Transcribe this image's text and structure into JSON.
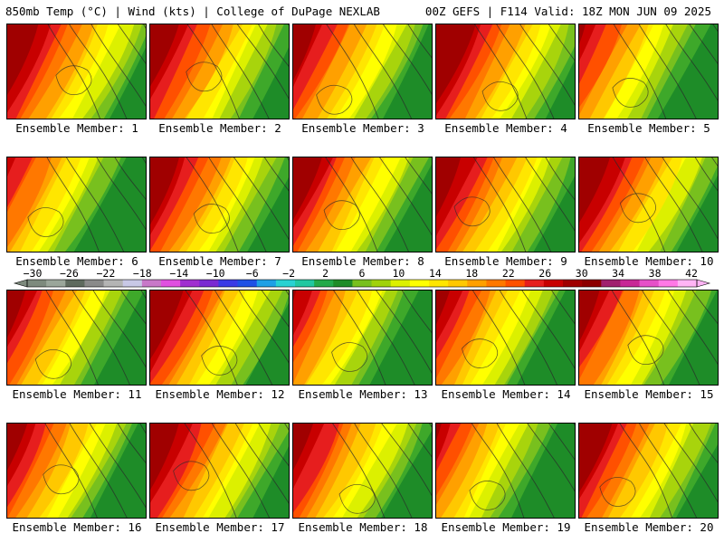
{
  "header": {
    "title": "850mb Temp (°C) | Wind (kts) | College of DuPage NEXLAB",
    "run_info": "00Z GEFS | F114 Valid: 18Z MON JUN 09 2025"
  },
  "colorbar": {
    "labels": [
      "-30",
      "-26",
      "-22",
      "-18",
      "-14",
      "-10",
      "-6",
      "-2",
      "2",
      "6",
      "10",
      "14",
      "18",
      "22",
      "26",
      "30",
      "34",
      "38",
      "42"
    ],
    "colors": [
      "#7d8a7d",
      "#9aa69a",
      "#5e6a5e",
      "#8a8a8a",
      "#b4b4b4",
      "#c8c8e6",
      "#c878c8",
      "#e050e0",
      "#a030d0",
      "#7a2ad2",
      "#3a3ae6",
      "#1e50e6",
      "#1ea0e6",
      "#28d2d2",
      "#20c8a0",
      "#22aa4a",
      "#1e8c28",
      "#78c01e",
      "#a0d20a",
      "#dcf000",
      "#ffff00",
      "#ffe600",
      "#ffc800",
      "#ffa000",
      "#ff7800",
      "#ff5000",
      "#e61e1e",
      "#c80000",
      "#a00000",
      "#8c0000",
      "#a0206e",
      "#c82896",
      "#e650c8",
      "#ff78e6",
      "#ffb4f5"
    ]
  },
  "members": [
    {
      "label": "Ensemble Member: 1",
      "warmth": 0.78
    },
    {
      "label": "Ensemble Member: 2",
      "warmth": 0.74
    },
    {
      "label": "Ensemble Member: 3",
      "warmth": 0.66
    },
    {
      "label": "Ensemble Member: 4",
      "warmth": 0.8
    },
    {
      "label": "Ensemble Member: 5",
      "warmth": 0.55
    },
    {
      "label": "Ensemble Member: 6",
      "warmth": 0.48
    },
    {
      "label": "Ensemble Member: 7",
      "warmth": 0.72
    },
    {
      "label": "Ensemble Member: 8",
      "warmth": 0.7
    },
    {
      "label": "Ensemble Member: 9",
      "warmth": 0.72
    },
    {
      "label": "Ensemble Member: 10",
      "warmth": 0.76
    },
    {
      "label": "Ensemble Member: 11",
      "warmth": 0.62
    },
    {
      "label": "Ensemble Member: 12",
      "warmth": 0.74
    },
    {
      "label": "Ensemble Member: 13",
      "warmth": 0.52
    },
    {
      "label": "Ensemble Member: 14",
      "warmth": 0.6
    },
    {
      "label": "Ensemble Member: 15",
      "warmth": 0.64
    },
    {
      "label": "Ensemble Member: 16",
      "warmth": 0.62
    },
    {
      "label": "Ensemble Member: 17",
      "warmth": 0.76
    },
    {
      "label": "Ensemble Member: 18",
      "warmth": 0.66
    },
    {
      "label": "Ensemble Member: 19",
      "warmth": 0.5
    },
    {
      "label": "Ensemble Member: 20",
      "warmth": 0.74
    }
  ]
}
